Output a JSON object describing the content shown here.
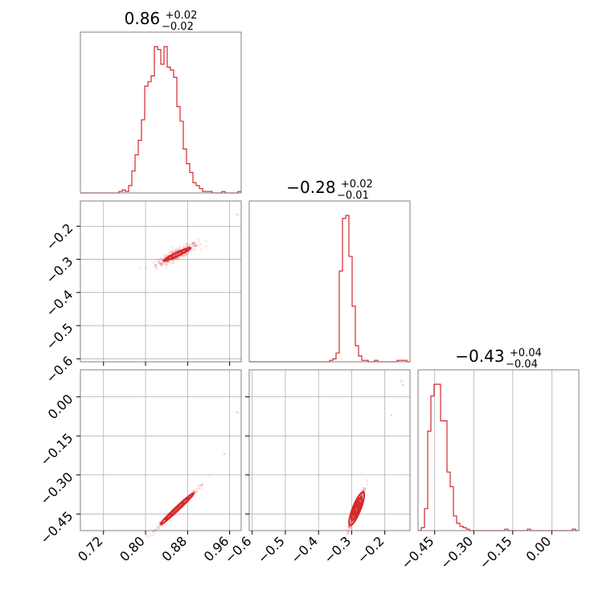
{
  "figure": {
    "type": "corner-plot",
    "color": "#d62728"
  },
  "chart_data": [
    {
      "type": "histogram",
      "name": "param-1-marginal",
      "title": {
        "median": "0.86",
        "plus": "+0.02",
        "minus": "−0.02"
      },
      "xlim": [
        0.676,
        0.982
      ],
      "histogram": {
        "x_start": 0.676,
        "bin_width": 0.00612,
        "counts": [
          0,
          0,
          0,
          0,
          0,
          0,
          0,
          0,
          0,
          0,
          0,
          0,
          1,
          2,
          1,
          5,
          15,
          26,
          36,
          50,
          73,
          76,
          80,
          100,
          98,
          88,
          100,
          86,
          84,
          79,
          59,
          49,
          30,
          20,
          14,
          7,
          5,
          3,
          1,
          1,
          1,
          0,
          0,
          0,
          1,
          0,
          0,
          0,
          0,
          1
        ]
      }
    },
    {
      "type": "scatter",
      "name": "param-1-vs-param-2",
      "x_ticks": [
        0.72,
        0.8,
        0.88,
        0.96
      ],
      "xlim": [
        0.676,
        0.982
      ],
      "ylim": [
        -0.609,
        -0.124
      ],
      "y_ticks": [
        -0.6,
        -0.5,
        -0.4,
        -0.3,
        -0.2
      ],
      "y_tick_labels": [
        "−0.6",
        "−0.5",
        "−0.4",
        "−0.3",
        "−0.2"
      ],
      "samples_model": {
        "center": [
          0.86,
          -0.285
        ],
        "sd_x": 0.02,
        "slope": 0.75,
        "sd_perp": 0.008,
        "count": 400
      },
      "outliers": [
        [
          0.975,
          -0.165
        ]
      ],
      "contours": [
        {
          "sx": 0.01,
          "sy": 0.006
        },
        {
          "sx": 0.018,
          "sy": 0.01
        },
        {
          "sx": 0.026,
          "sy": 0.014
        }
      ]
    },
    {
      "type": "scatter",
      "name": "param-1-vs-param-3",
      "x_ticks": [
        0.72,
        0.8,
        0.88,
        0.96
      ],
      "x_tick_labels": [
        "0.72",
        "0.80",
        "0.88",
        "0.96"
      ],
      "xlim": [
        0.676,
        0.982
      ],
      "ylim": [
        -0.514,
        0.104
      ],
      "y_ticks": [
        -0.45,
        -0.3,
        -0.15,
        0.0
      ],
      "y_tick_labels": [
        "−0.45",
        "−0.30",
        "−0.15",
        "0.00"
      ],
      "samples_model": {
        "center": [
          0.86,
          -0.43
        ],
        "sd_x": 0.02,
        "slope": 1.9,
        "sd_perp": 0.006,
        "count": 400
      },
      "outliers": [
        [
          0.95,
          -0.22
        ],
        [
          0.975,
          -0.06
        ]
      ],
      "contours": [
        {
          "sx": 0.012,
          "sy": 0.008
        },
        {
          "sx": 0.022,
          "sy": 0.014
        },
        {
          "sx": 0.032,
          "sy": 0.02
        }
      ]
    },
    {
      "type": "histogram",
      "name": "param-2-marginal",
      "title": {
        "median": "−0.28",
        "plus": "+0.02",
        "minus": "−0.01"
      },
      "xlim": [
        -0.609,
        -0.124
      ],
      "histogram": {
        "x_start": -0.609,
        "bin_width": 0.0097,
        "counts": [
          0,
          0,
          0,
          0,
          0,
          0,
          0,
          0,
          0,
          0,
          0,
          0,
          0,
          0,
          0,
          0,
          0,
          0,
          0,
          0,
          0,
          0,
          0,
          0,
          0,
          1,
          2,
          6,
          62,
          98,
          100,
          72,
          38,
          11,
          4,
          1,
          1,
          0,
          0,
          1,
          0,
          0,
          0,
          0,
          0,
          0,
          1,
          1,
          1,
          0
        ]
      }
    },
    {
      "type": "scatter",
      "name": "param-2-vs-param-3",
      "x_ticks": [
        -0.6,
        -0.5,
        -0.4,
        -0.3,
        -0.2
      ],
      "x_tick_labels": [
        "−0.6",
        "−0.5",
        "−0.4",
        "−0.3",
        "−0.2"
      ],
      "xlim": [
        -0.609,
        -0.124
      ],
      "ylim": [
        -0.514,
        0.104
      ],
      "y_ticks": [
        -0.45,
        -0.3,
        -0.15,
        0.0
      ],
      "samples_model": {
        "center": [
          -0.285,
          -0.43
        ],
        "sd_x": 0.012,
        "slope": 3.2,
        "sd_perp": 0.008,
        "count": 400
      },
      "outliers": [
        [
          -0.145,
          0.045
        ],
        [
          -0.15,
          0.06
        ],
        [
          -0.18,
          -0.07
        ]
      ],
      "contours": [
        {
          "sx": 0.008,
          "sy": 0.016
        },
        {
          "sx": 0.014,
          "sy": 0.03
        },
        {
          "sx": 0.02,
          "sy": 0.044
        }
      ]
    },
    {
      "type": "histogram",
      "name": "param-3-marginal",
      "title": {
        "median": "−0.43",
        "plus": "+0.04",
        "minus": "−0.04"
      },
      "x_ticks": [
        -0.45,
        -0.3,
        -0.15,
        0.0
      ],
      "x_tick_labels": [
        "−0.45",
        "−0.30",
        "−0.15",
        "0.00"
      ],
      "xlim": [
        -0.514,
        0.104
      ],
      "histogram": {
        "x_start": -0.514,
        "bin_width": 0.01236,
        "counts": [
          0,
          2,
          15,
          68,
          92,
          100,
          100,
          75,
          75,
          40,
          30,
          10,
          5,
          3,
          2,
          1,
          0,
          0,
          0,
          0,
          0,
          0,
          0,
          0,
          0,
          0,
          0,
          1,
          0,
          0,
          0,
          0,
          0,
          0,
          1,
          0,
          0,
          0,
          0,
          0,
          0,
          0,
          0,
          0,
          0,
          0,
          0,
          0,
          1,
          0
        ]
      }
    }
  ]
}
